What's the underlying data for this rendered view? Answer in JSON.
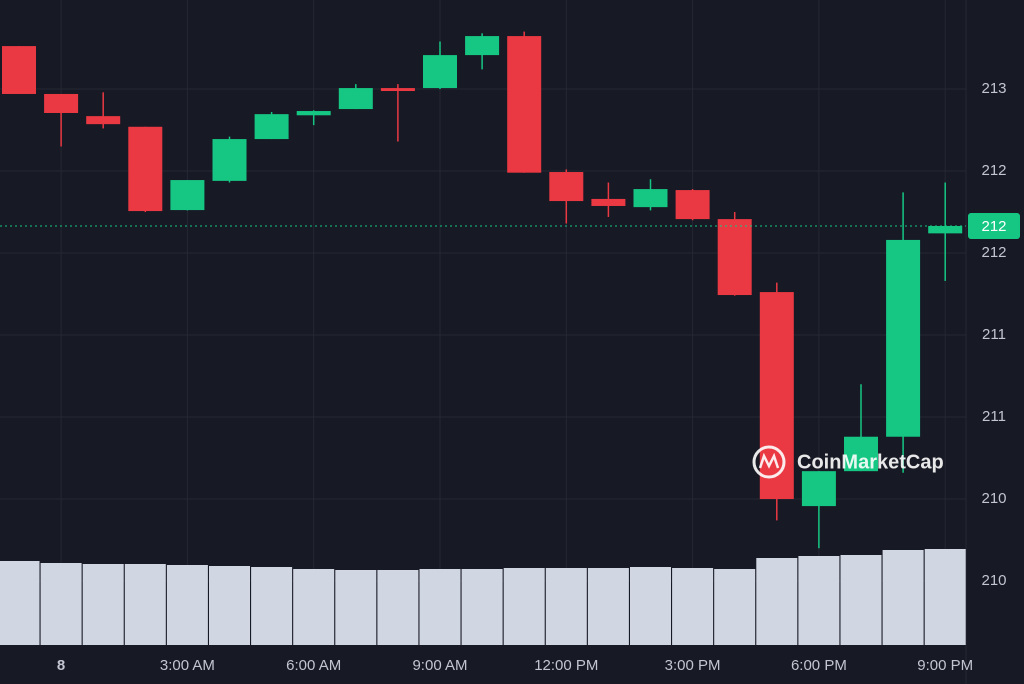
{
  "chart_data": {
    "type": "candlestick",
    "categories": [
      null,
      "8",
      null,
      null,
      "3:00 AM",
      null,
      null,
      "6:00 AM",
      null,
      null,
      "9:00 AM",
      null,
      null,
      "12:00 PM",
      null,
      null,
      "3:00 PM",
      null,
      null,
      "6:00 PM",
      null,
      null,
      "9:00 PM"
    ],
    "open": [
      213.162,
      212.87,
      212.735,
      212.67,
      212.162,
      212.34,
      212.595,
      212.74,
      212.778,
      212.906,
      212.906,
      213.107,
      213.223,
      212.394,
      212.23,
      212.18,
      212.284,
      212.107,
      211.662,
      210.357,
      210.57,
      210.78,
      212.02
    ],
    "high": [
      213.162,
      212.87,
      212.88,
      212.67,
      212.345,
      212.61,
      212.76,
      212.77,
      212.93,
      212.93,
      213.19,
      213.24,
      213.25,
      212.41,
      212.33,
      212.35,
      212.29,
      212.15,
      211.72,
      210.57,
      211.1,
      212.27,
      212.33
    ],
    "low": [
      212.87,
      212.55,
      212.66,
      212.15,
      212.16,
      212.33,
      212.595,
      212.68,
      212.778,
      212.58,
      212.9,
      213.02,
      212.39,
      212.08,
      212.12,
      212.16,
      212.1,
      211.64,
      210.27,
      210.1,
      210.57,
      210.56,
      211.73
    ],
    "close": [
      212.87,
      212.754,
      212.686,
      212.156,
      212.345,
      212.595,
      212.747,
      212.766,
      212.906,
      212.888,
      213.107,
      213.223,
      212.39,
      212.217,
      212.187,
      212.29,
      212.107,
      211.644,
      210.4,
      210.57,
      210.78,
      211.98,
      212.065
    ],
    "volume": [
      84,
      82,
      81,
      81,
      80,
      79,
      78,
      76,
      75,
      75,
      76,
      76,
      77,
      77,
      77,
      78,
      77,
      76,
      87,
      89,
      90,
      95,
      96
    ],
    "up_color": "#16c784",
    "down_color": "#ea3943",
    "volume_color": "#d1d6e3",
    "ylim": [
      209.51,
      213.443
    ],
    "yticks": [
      {
        "value": 212.9,
        "label": "213"
      },
      {
        "value": 212.4,
        "label": "212"
      },
      {
        "value": 211.9,
        "label": "212"
      },
      {
        "value": 211.4,
        "label": "211"
      },
      {
        "value": 210.9,
        "label": "211"
      },
      {
        "value": 210.4,
        "label": "210"
      },
      {
        "value": 209.9,
        "label": "210"
      }
    ],
    "vlim": [
      0,
      100
    ],
    "last_price": {
      "value": 212.065,
      "label": "212"
    },
    "watermark": "CoinMarketCap",
    "grid": true
  }
}
